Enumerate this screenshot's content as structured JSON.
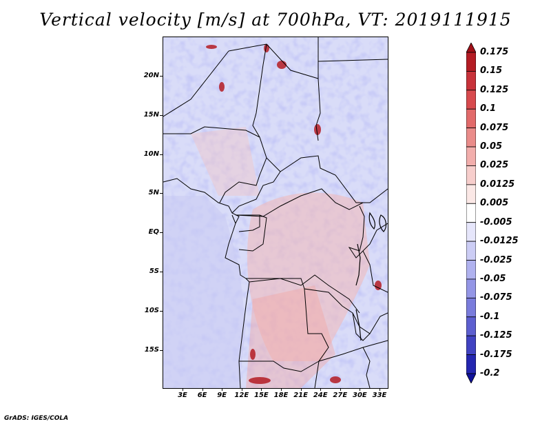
{
  "title": "Vertical velocity [m/s] at 700hPa, VT: 2019111915",
  "footer": "GrADS: IGES/COLA",
  "map": {
    "lat_labels": [
      "20N",
      "15N",
      "10N",
      "5N",
      "EQ",
      "5S",
      "10S",
      "15S"
    ],
    "lon_labels": [
      "3E",
      "6E",
      "9E",
      "12E",
      "15E",
      "18E",
      "21E",
      "24E",
      "27E",
      "30E",
      "33E"
    ]
  },
  "colorbar": {
    "labels": [
      "0.175",
      "0.15",
      "0.125",
      "0.1",
      "0.075",
      "0.05",
      "0.025",
      "0.0125",
      "0.005",
      "-0.005",
      "-0.0125",
      "-0.025",
      "-0.05",
      "-0.075",
      "-0.1",
      "-0.125",
      "-0.175",
      "-0.2"
    ],
    "colors": [
      "#a01018",
      "#b41c24",
      "#c8323a",
      "#d84a4e",
      "#e26a6a",
      "#ea8c8a",
      "#f2aeac",
      "#f7cecc",
      "#fbe8e6",
      "#ffffff",
      "#e6e6fb",
      "#cccdf5",
      "#b0b2ef",
      "#9496e6",
      "#7a7cdc",
      "#5d5fd0",
      "#4143c2",
      "#2426b0",
      "#10129a"
    ]
  }
}
